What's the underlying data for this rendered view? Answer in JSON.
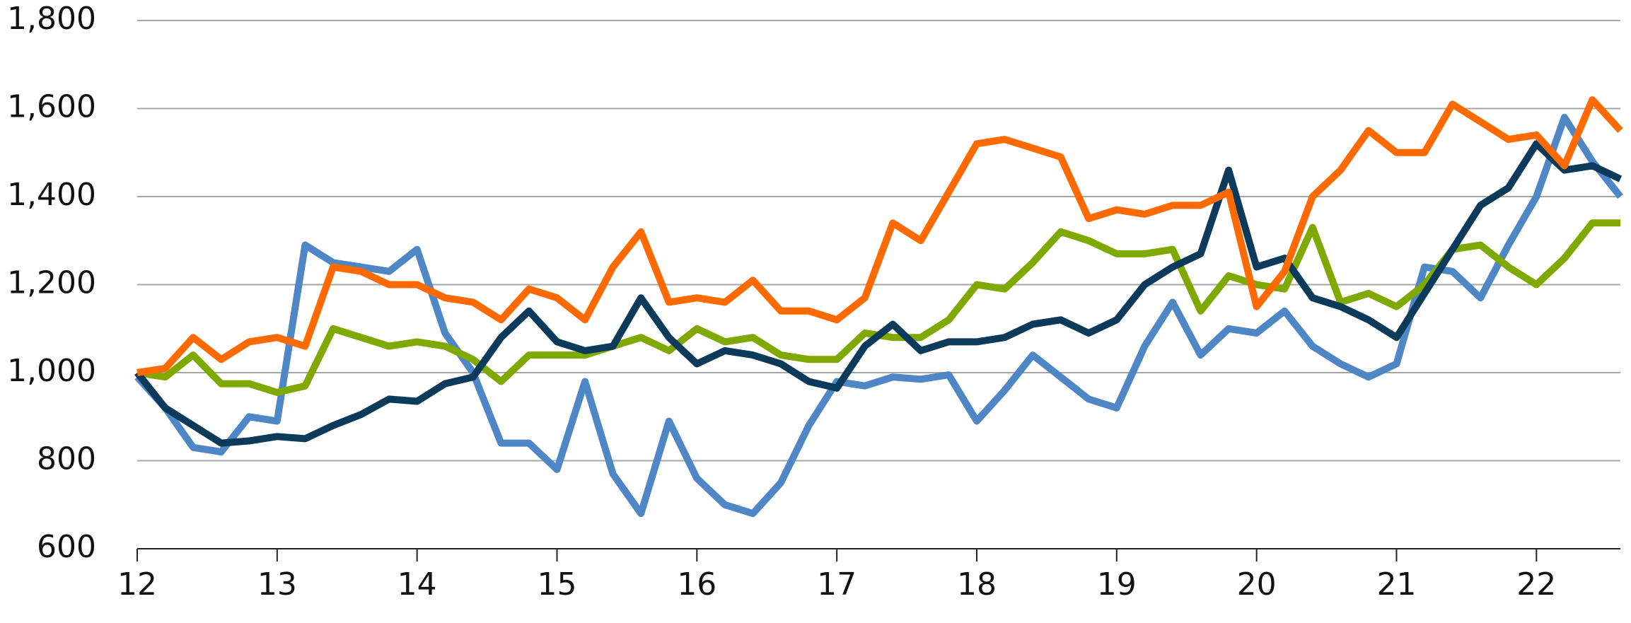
{
  "chart_data": {
    "type": "line",
    "x": [
      12.0,
      12.2,
      12.4,
      12.6,
      12.8,
      13.0,
      13.2,
      13.4,
      13.6,
      13.8,
      14.0,
      14.2,
      14.4,
      14.6,
      14.8,
      15.0,
      15.2,
      15.4,
      15.6,
      15.8,
      16.0,
      16.2,
      16.4,
      16.6,
      16.8,
      17.0,
      17.2,
      17.4,
      17.6,
      17.8,
      18.0,
      18.2,
      18.4,
      18.6,
      18.8,
      19.0,
      19.2,
      19.4,
      19.6,
      19.8,
      20.0,
      20.2,
      20.4,
      20.6,
      20.8,
      21.0,
      21.2,
      21.4,
      21.6,
      21.8,
      22.0,
      22.2,
      22.4,
      22.6
    ],
    "series": [
      {
        "color": "#4f86c6",
        "values": [
          990,
          920,
          830,
          820,
          900,
          890,
          1290,
          1250,
          1240,
          1230,
          1280,
          1090,
          1000,
          840,
          840,
          780,
          980,
          770,
          680,
          890,
          760,
          700,
          680,
          750,
          880,
          980,
          970,
          990,
          985,
          995,
          890,
          960,
          1040,
          990,
          940,
          920,
          1060,
          1160,
          1040,
          1100,
          1090,
          1140,
          1060,
          1020,
          990,
          1020,
          1240,
          1230,
          1170,
          1290,
          1400,
          1580,
          1480,
          1400
        ]
      },
      {
        "color": "#7fa800",
        "values": [
          1000,
          990,
          1040,
          975,
          975,
          955,
          970,
          1100,
          1080,
          1060,
          1070,
          1060,
          1030,
          980,
          1040,
          1040,
          1040,
          1060,
          1080,
          1050,
          1100,
          1070,
          1080,
          1040,
          1030,
          1030,
          1090,
          1080,
          1080,
          1120,
          1200,
          1190,
          1250,
          1320,
          1300,
          1270,
          1270,
          1280,
          1140,
          1220,
          1200,
          1190,
          1330,
          1160,
          1180,
          1150,
          1200,
          1280,
          1290,
          1240,
          1200,
          1260,
          1340,
          1340
        ]
      },
      {
        "color": "#0b3a5b",
        "values": [
          1000,
          920,
          880,
          840,
          845,
          855,
          850,
          880,
          905,
          940,
          935,
          975,
          990,
          1080,
          1140,
          1070,
          1050,
          1060,
          1170,
          1080,
          1020,
          1050,
          1040,
          1020,
          980,
          965,
          1060,
          1110,
          1050,
          1070,
          1070,
          1080,
          1110,
          1120,
          1090,
          1120,
          1200,
          1240,
          1270,
          1460,
          1240,
          1260,
          1170,
          1150,
          1120,
          1080,
          1180,
          1280,
          1380,
          1420,
          1520,
          1460,
          1470,
          1440
        ]
      },
      {
        "color": "#ff6a00",
        "values": [
          1000,
          1010,
          1080,
          1030,
          1070,
          1080,
          1060,
          1240,
          1230,
          1200,
          1200,
          1170,
          1160,
          1120,
          1190,
          1170,
          1120,
          1240,
          1320,
          1160,
          1170,
          1160,
          1210,
          1140,
          1140,
          1120,
          1170,
          1340,
          1300,
          1410,
          1520,
          1530,
          1510,
          1490,
          1350,
          1370,
          1360,
          1380,
          1380,
          1410,
          1150,
          1230,
          1400,
          1460,
          1550,
          1500,
          1500,
          1610,
          1570,
          1530,
          1540,
          1470,
          1620,
          1550
        ]
      }
    ],
    "xlim": [
      12,
      22.6
    ],
    "xticks": [
      12,
      13,
      14,
      15,
      16,
      17,
      18,
      19,
      20,
      21,
      22
    ],
    "ylim": [
      600,
      1800
    ],
    "yticks": [
      600,
      800,
      {
        "value": 1000,
        "label": "1,000"
      },
      {
        "value": 1200,
        "label": "1,200"
      },
      {
        "value": 1400,
        "label": "1,400"
      },
      {
        "value": 1600,
        "label": "1,600"
      },
      {
        "value": 1800,
        "label": "1,800"
      }
    ],
    "grid": true
  }
}
